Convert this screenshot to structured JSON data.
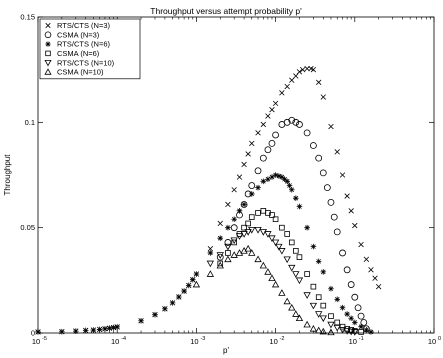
{
  "chart_data": {
    "type": "scatter",
    "title": "Throughput versus attempt probability p'",
    "xlabel": "p'",
    "ylabel": "Throughput",
    "xscale": "log",
    "xlim": [
      1e-05,
      1
    ],
    "ylim": [
      0,
      0.15
    ],
    "grid": false,
    "legend_position": "top-left",
    "x_ticks": [
      {
        "v": 1e-05,
        "base": "10",
        "exp": "-5"
      },
      {
        "v": 0.0001,
        "base": "10",
        "exp": "-4"
      },
      {
        "v": 0.001,
        "base": "10",
        "exp": "-3"
      },
      {
        "v": 0.01,
        "base": "10",
        "exp": "-2"
      },
      {
        "v": 0.1,
        "base": "10",
        "exp": "-1"
      },
      {
        "v": 1,
        "base": "10",
        "exp": "0"
      }
    ],
    "y_ticks": [
      {
        "v": 0,
        "label": "0"
      },
      {
        "v": 0.05,
        "label": "0.05"
      },
      {
        "v": 0.1,
        "label": "0.1"
      },
      {
        "v": 0.15,
        "label": "0.15"
      }
    ],
    "series": [
      {
        "name": "RTS/CTS (N=3)",
        "marker": "x",
        "x": [
          1e-05,
          2e-05,
          3e-05,
          4e-05,
          5e-05,
          6e-05,
          7e-05,
          8e-05,
          9e-05,
          0.0001,
          0.0002,
          0.0003,
          0.0004,
          0.0005,
          0.0006,
          0.0007,
          0.0008,
          0.0009,
          0.001,
          0.0015,
          0.002,
          0.0025,
          0.003,
          0.0035,
          0.004,
          0.0045,
          0.005,
          0.006,
          0.007,
          0.008,
          0.009,
          0.01,
          0.012,
          0.014,
          0.016,
          0.018,
          0.02,
          0.022,
          0.025,
          0.028,
          0.03,
          0.035,
          0.04,
          0.05,
          0.06,
          0.07,
          0.08,
          0.09,
          0.1,
          0.12,
          0.14,
          0.16,
          0.18,
          0.2
        ],
        "y": [
          0.0005,
          0.0006,
          0.0009,
          0.0012,
          0.0014,
          0.0017,
          0.002,
          0.0023,
          0.0026,
          0.0029,
          0.0058,
          0.0087,
          0.0115,
          0.0143,
          0.0171,
          0.0199,
          0.0226,
          0.0253,
          0.028,
          0.04,
          0.052,
          0.061,
          0.068,
          0.074,
          0.08,
          0.085,
          0.09,
          0.095,
          0.099,
          0.103,
          0.106,
          0.109,
          0.114,
          0.117,
          0.12,
          0.122,
          0.124,
          0.125,
          0.1255,
          0.1255,
          0.125,
          0.119,
          0.112,
          0.098,
          0.086,
          0.075,
          0.065,
          0.058,
          0.051,
          0.042,
          0.035,
          0.03,
          0.026,
          0.022
        ]
      },
      {
        "name": "CSMA (N=3)",
        "marker": "o",
        "x": [
          0.002,
          0.0025,
          0.003,
          0.0035,
          0.004,
          0.0045,
          0.005,
          0.006,
          0.007,
          0.008,
          0.009,
          0.01,
          0.012,
          0.014,
          0.016,
          0.018,
          0.02,
          0.025,
          0.03,
          0.035,
          0.04,
          0.045,
          0.05,
          0.055,
          0.06,
          0.07,
          0.08,
          0.09,
          0.1,
          0.11,
          0.12,
          0.13,
          0.14
        ],
        "y": [
          0.036,
          0.043,
          0.05,
          0.056,
          0.061,
          0.066,
          0.07,
          0.077,
          0.083,
          0.087,
          0.09,
          0.094,
          0.099,
          0.1,
          0.101,
          0.1,
          0.099,
          0.095,
          0.089,
          0.083,
          0.076,
          0.069,
          0.062,
          0.055,
          0.048,
          0.038,
          0.03,
          0.023,
          0.017,
          0.012,
          0.008,
          0.005,
          0.002
        ]
      },
      {
        "name": "RTS/CTS (N=6)",
        "marker": "*",
        "x": [
          1e-05,
          2e-05,
          3e-05,
          4e-05,
          5e-05,
          6e-05,
          7e-05,
          8e-05,
          9e-05,
          0.0001,
          0.0002,
          0.0003,
          0.0004,
          0.0005,
          0.0006,
          0.0007,
          0.0008,
          0.0009,
          0.001,
          0.0015,
          0.002,
          0.0025,
          0.003,
          0.0035,
          0.004,
          0.005,
          0.006,
          0.007,
          0.008,
          0.009,
          0.01,
          0.011,
          0.012,
          0.013,
          0.014,
          0.015,
          0.016,
          0.018,
          0.02,
          0.025,
          0.03,
          0.035,
          0.04,
          0.05,
          0.06,
          0.07,
          0.08,
          0.09,
          0.1,
          0.12,
          0.14,
          0.16
        ],
        "y": [
          0.0005,
          0.0006,
          0.0009,
          0.0012,
          0.0014,
          0.0017,
          0.002,
          0.0023,
          0.0026,
          0.0029,
          0.0058,
          0.0087,
          0.0115,
          0.0143,
          0.0171,
          0.0199,
          0.0226,
          0.0253,
          0.028,
          0.038,
          0.045,
          0.05,
          0.054,
          0.058,
          0.061,
          0.066,
          0.069,
          0.072,
          0.073,
          0.074,
          0.075,
          0.0745,
          0.074,
          0.073,
          0.072,
          0.07,
          0.068,
          0.064,
          0.06,
          0.05,
          0.041,
          0.034,
          0.029,
          0.021,
          0.016,
          0.012,
          0.009,
          0.007,
          0.005,
          0.003,
          0.0015,
          0.0005
        ]
      },
      {
        "name": "CSMA (N=6)",
        "marker": "square",
        "x": [
          0.002,
          0.0025,
          0.003,
          0.0035,
          0.004,
          0.0045,
          0.005,
          0.006,
          0.007,
          0.008,
          0.009,
          0.01,
          0.012,
          0.014,
          0.016,
          0.018,
          0.02,
          0.025,
          0.03,
          0.035,
          0.04,
          0.05,
          0.06,
          0.07,
          0.08,
          0.09,
          0.1,
          0.12
        ],
        "y": [
          0.033,
          0.038,
          0.043,
          0.047,
          0.05,
          0.052,
          0.055,
          0.057,
          0.058,
          0.057,
          0.056,
          0.054,
          0.05,
          0.047,
          0.043,
          0.039,
          0.036,
          0.028,
          0.022,
          0.017,
          0.013,
          0.008,
          0.005,
          0.003,
          0.002,
          0.0015,
          0.001,
          0.0005
        ]
      },
      {
        "name": "RTS/CTS (N=10)",
        "marker": "triangle-down",
        "x": [
          0.0015,
          0.002,
          0.0025,
          0.003,
          0.0035,
          0.004,
          0.0045,
          0.005,
          0.006,
          0.007,
          0.008,
          0.009,
          0.01,
          0.011,
          0.012,
          0.014,
          0.016,
          0.018,
          0.02,
          0.025,
          0.03,
          0.035,
          0.04,
          0.05,
          0.06,
          0.07,
          0.08,
          0.09,
          0.1
        ],
        "y": [
          0.033,
          0.037,
          0.041,
          0.044,
          0.046,
          0.047,
          0.048,
          0.049,
          0.049,
          0.048,
          0.047,
          0.045,
          0.043,
          0.041,
          0.039,
          0.035,
          0.031,
          0.028,
          0.025,
          0.018,
          0.013,
          0.009,
          0.007,
          0.004,
          0.0025,
          0.0015,
          0.001,
          0.0007,
          0.0005
        ]
      },
      {
        "name": "CSMA (N=10)",
        "marker": "triangle-up",
        "x": [
          0.001,
          0.0015,
          0.002,
          0.0025,
          0.003,
          0.0035,
          0.004,
          0.0045,
          0.005,
          0.006,
          0.007,
          0.008,
          0.009,
          0.01,
          0.012,
          0.014,
          0.016,
          0.018,
          0.02,
          0.025,
          0.03,
          0.035,
          0.04,
          0.05
        ],
        "y": [
          0.023,
          0.028,
          0.032,
          0.035,
          0.037,
          0.038,
          0.039,
          0.04,
          0.038,
          0.035,
          0.032,
          0.029,
          0.026,
          0.023,
          0.019,
          0.015,
          0.012,
          0.009,
          0.007,
          0.004,
          0.002,
          0.0012,
          0.0007,
          0.0003
        ]
      }
    ]
  }
}
